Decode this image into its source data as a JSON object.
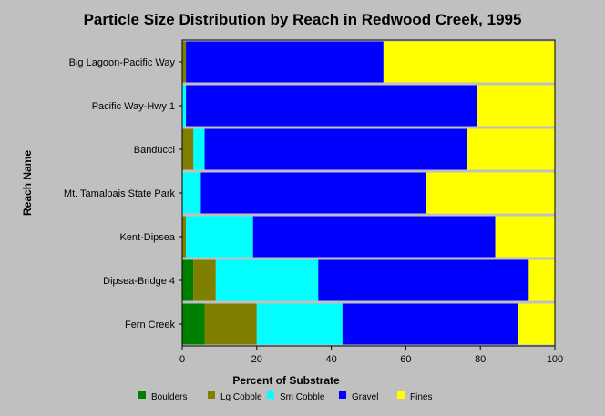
{
  "chart_data": {
    "type": "bar",
    "orientation": "horizontal",
    "stacked": true,
    "title": "Particle Size Distribution by Reach in Redwood Creek, 1995",
    "xlabel": "Percent of Substrate",
    "ylabel": "Reach Name",
    "xlim": [
      0,
      100
    ],
    "xticks": [
      0,
      20,
      40,
      60,
      80,
      100
    ],
    "legend_position": "bottom",
    "grid": false,
    "categories": [
      "Big Lagoon-Pacific Way",
      "Pacific Way-Hwy 1",
      "Banducci",
      "Mt. Tamalpais State Park",
      "Kent-Dipsea",
      "Dipsea-Bridge 4",
      "Fern Creek"
    ],
    "series": [
      {
        "name": "Boulders",
        "color": "#008000",
        "values": [
          0,
          0,
          0,
          0,
          0,
          3,
          6
        ]
      },
      {
        "name": "Lg Cobble",
        "color": "#808000",
        "values": [
          1,
          0,
          3,
          0,
          1,
          6,
          14
        ]
      },
      {
        "name": "Sm Cobble",
        "color": "#00ffff",
        "values": [
          0,
          1,
          3,
          5,
          18,
          27.5,
          23
        ]
      },
      {
        "name": "Gravel",
        "color": "#0000ff",
        "values": [
          53,
          78,
          70.5,
          60.5,
          65,
          56.5,
          47
        ]
      },
      {
        "name": "Fines",
        "color": "#ffff00",
        "values": [
          46,
          21,
          23.5,
          34.5,
          16,
          7,
          10
        ]
      }
    ]
  }
}
